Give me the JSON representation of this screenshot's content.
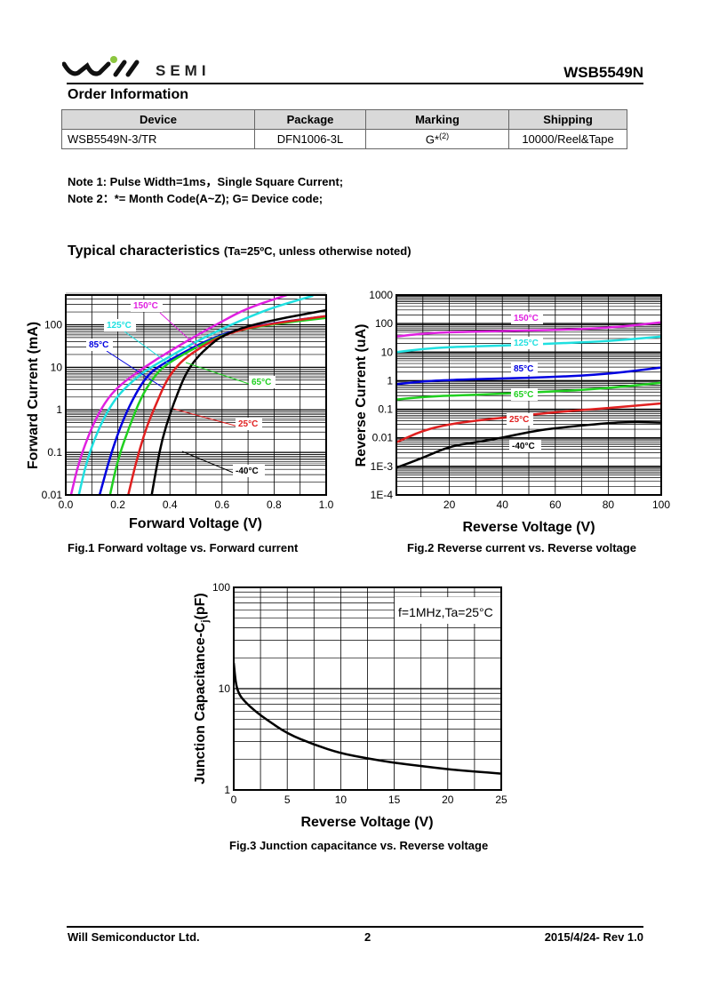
{
  "header": {
    "logo_text": "SEMI",
    "part_number": "WSB5549N"
  },
  "order_info": {
    "title": "Order Information",
    "columns": [
      "Device",
      "Package",
      "Marking",
      "Shipping"
    ],
    "rows": [
      {
        "device": "WSB5549N-3/TR",
        "package": "DFN1006-3L",
        "marking": "G*",
        "marking_sup": "(2)",
        "shipping": "10000/Reel&Tape"
      }
    ]
  },
  "notes": [
    "Note 1: Pulse Width=1ms，Single Square Current;",
    "Note 2：*= Month Code(A~Z); G= Device code;"
  ],
  "typical": {
    "title": "Typical characteristics",
    "condition": "(Ta=25ºC, unless otherwise noted)"
  },
  "chart_data": [
    {
      "id": "fig1",
      "type": "line",
      "title": "Fig.1 Forward voltage vs. Forward current",
      "xlabel": "Forward Voltage (V)",
      "ylabel": "Forward Current (mA)",
      "xlim": [
        0.0,
        1.0
      ],
      "ylim": [
        0.01,
        500
      ],
      "yscale": "log",
      "grid": true,
      "xticks": [
        "0.0",
        "0.2",
        "0.4",
        "0.6",
        "0.8",
        "1.0"
      ],
      "yticks": [
        "0.01",
        "0.1",
        "1",
        "10",
        "100"
      ],
      "series": [
        {
          "name": "150°C",
          "color": "#e020e0",
          "x": [
            0.02,
            0.05,
            0.1,
            0.15,
            0.2,
            0.3,
            0.4,
            0.5,
            0.6,
            0.7,
            0.85
          ],
          "y": [
            0.01,
            0.06,
            0.4,
            1.5,
            3.5,
            10,
            24,
            55,
            120,
            250,
            500
          ]
        },
        {
          "name": "125°C",
          "color": "#20e0e0",
          "x": [
            0.05,
            0.08,
            0.12,
            0.17,
            0.22,
            0.3,
            0.4,
            0.5,
            0.6,
            0.7,
            0.8,
            0.95
          ],
          "y": [
            0.01,
            0.06,
            0.3,
            1.2,
            3,
            8,
            18,
            40,
            80,
            150,
            260,
            480
          ]
        },
        {
          "name": "85°C",
          "color": "#0000e0",
          "x": [
            0.13,
            0.17,
            0.22,
            0.27,
            0.31,
            0.35,
            0.45,
            0.55,
            0.65,
            0.8,
            1.0
          ],
          "y": [
            0.01,
            0.08,
            0.6,
            2.5,
            6,
            10,
            22,
            45,
            75,
            110,
            160
          ]
        },
        {
          "name": "65°C",
          "color": "#20d020",
          "x": [
            0.17,
            0.2,
            0.25,
            0.29,
            0.33,
            0.37,
            0.45,
            0.55,
            0.65,
            0.8,
            1.0
          ],
          "y": [
            0.01,
            0.07,
            0.5,
            2,
            5,
            10,
            20,
            42,
            72,
            105,
            145
          ]
        },
        {
          "name": "25°C",
          "color": "#e02020",
          "x": [
            0.24,
            0.27,
            0.31,
            0.35,
            0.38,
            0.41,
            0.45,
            0.52,
            0.6,
            0.7,
            0.85,
            1.0
          ],
          "y": [
            0.01,
            0.06,
            0.4,
            1.5,
            4,
            8,
            15,
            30,
            55,
            85,
            120,
            160
          ]
        },
        {
          "name": "-40°C",
          "color": "#000000",
          "x": [
            0.33,
            0.35,
            0.37,
            0.4,
            0.43,
            0.46,
            0.5,
            0.55,
            0.6,
            0.7,
            0.85,
            1.0
          ],
          "y": [
            0.01,
            0.05,
            0.2,
            0.8,
            2.5,
            7,
            16,
            32,
            55,
            95,
            150,
            220
          ]
        }
      ]
    },
    {
      "id": "fig2",
      "type": "line",
      "title": "Fig.2 Reverse current vs. Reverse voltage",
      "xlabel": "Reverse Voltage (V)",
      "ylabel": "Reverse Current (uA)",
      "xlim": [
        0,
        100
      ],
      "ylim": [
        0.0001,
        1000
      ],
      "yscale": "log",
      "grid": true,
      "xticks": [
        "20",
        "40",
        "60",
        "80",
        "100"
      ],
      "yticks": [
        "1E-4",
        "1E-3",
        "0.01",
        "0.1",
        "1",
        "10",
        "100",
        "1000"
      ],
      "series": [
        {
          "name": "150°C",
          "color": "#e020e0",
          "x": [
            0,
            10,
            20,
            40,
            60,
            80,
            100
          ],
          "y": [
            35,
            45,
            50,
            55,
            60,
            70,
            110
          ]
        },
        {
          "name": "125°C",
          "color": "#20e0e0",
          "x": [
            0,
            10,
            20,
            40,
            60,
            80,
            100
          ],
          "y": [
            10,
            13,
            15,
            17,
            20,
            24,
            35
          ]
        },
        {
          "name": "85°C",
          "color": "#0000e0",
          "x": [
            0,
            10,
            20,
            40,
            60,
            80,
            100
          ],
          "y": [
            0.75,
            0.95,
            1.05,
            1.2,
            1.35,
            1.7,
            2.9
          ]
        },
        {
          "name": "65°C",
          "color": "#20d020",
          "x": [
            0,
            10,
            20,
            40,
            60,
            80,
            100
          ],
          "y": [
            0.22,
            0.27,
            0.3,
            0.35,
            0.42,
            0.55,
            0.85
          ]
        },
        {
          "name": "25°C",
          "color": "#e02020",
          "x": [
            0,
            10,
            20,
            30,
            40,
            60,
            80,
            100
          ],
          "y": [
            0.007,
            0.018,
            0.03,
            0.04,
            0.05,
            0.08,
            0.11,
            0.16
          ]
        },
        {
          "name": "-40°C",
          "color": "#000000",
          "x": [
            0,
            10,
            20,
            30,
            40,
            50,
            60,
            80,
            90,
            100
          ],
          "y": [
            0.0009,
            0.002,
            0.005,
            0.007,
            0.01,
            0.016,
            0.022,
            0.033,
            0.036,
            0.034
          ]
        }
      ]
    },
    {
      "id": "fig3",
      "type": "line",
      "title": "Fig.3 Junction capacitance vs. Reverse voltage",
      "xlabel": "Reverse Voltage (V)",
      "ylabel": "Junction Capacitance-C",
      "ylabel_sub": "j",
      "ylabel_suffix": "(pF)",
      "annotation": "f=1MHz,Ta=25°C",
      "xlim": [
        0,
        25
      ],
      "ylim": [
        1,
        100
      ],
      "yscale": "log",
      "grid": true,
      "xticks": [
        "0",
        "5",
        "10",
        "15",
        "20",
        "25"
      ],
      "yticks": [
        "1",
        "10",
        "100"
      ],
      "series": [
        {
          "name": "Cj",
          "color": "#000000",
          "x": [
            0,
            0.2,
            0.5,
            1,
            2,
            3,
            5,
            7.5,
            10,
            12.5,
            15,
            17.5,
            20,
            22.5,
            25
          ],
          "y": [
            18,
            11,
            8.8,
            7.5,
            6,
            5,
            3.6,
            2.8,
            2.3,
            2.05,
            1.85,
            1.72,
            1.6,
            1.52,
            1.45
          ]
        }
      ]
    }
  ],
  "footer": {
    "company": "Will Semiconductor Ltd.",
    "page": "2",
    "revision": "2015/4/24- Rev 1.0"
  }
}
